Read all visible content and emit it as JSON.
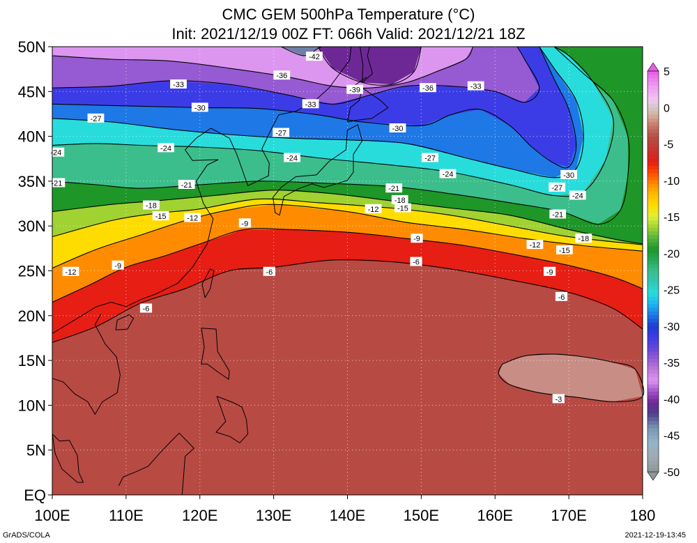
{
  "title_line1": "CMC GEM 500hPa Temperature (°C)",
  "title_line2": "Init: 2021/12/19 00Z  FT: 066h  Valid: 2021/12/21 18Z",
  "footer_left": "GrADS/COLA",
  "footer_right": "2021-12-19-13:45",
  "map": {
    "lon_range": [
      100,
      180
    ],
    "lat_range": [
      0,
      50
    ],
    "lon_tick_labels": [
      "100E",
      "110E",
      "120E",
      "130E",
      "140E",
      "150E",
      "160E",
      "170E",
      "180"
    ],
    "lat_tick_labels": [
      "EQ",
      "5N",
      "10N",
      "15N",
      "20N",
      "25N",
      "30N",
      "35N",
      "40N",
      "45N",
      "50N"
    ],
    "grid": true
  },
  "colorbar": {
    "tick_labels": [
      "5",
      "0",
      "-5",
      "-10",
      "-15",
      "-20",
      "-25",
      "-30",
      "-35",
      "-40",
      "-45",
      "-50"
    ],
    "range": [
      -50,
      5
    ],
    "extend_arrows": true
  },
  "contours": [
    {
      "value": -3,
      "label": "-3",
      "points": [
        [
          161,
          14.6
        ],
        [
          164,
          15.5
        ],
        [
          168,
          15.7
        ],
        [
          172,
          15.4
        ],
        [
          176,
          14.8
        ],
        [
          179,
          14.0
        ],
        [
          180,
          11.0
        ],
        [
          176,
          10.4
        ],
        [
          171,
          10.9
        ],
        [
          166,
          11.4
        ],
        [
          162,
          12.3
        ],
        [
          160.5,
          13.5
        ],
        [
          161,
          14.6
        ]
      ]
    },
    {
      "value": -6,
      "label": "-6",
      "points": [
        [
          100,
          17.0
        ],
        [
          106,
          18.8
        ],
        [
          112,
          21.4
        ],
        [
          118,
          23.0
        ],
        [
          124,
          25.0
        ],
        [
          130,
          25.4
        ],
        [
          138,
          26.2
        ],
        [
          146,
          26.0
        ],
        [
          154,
          25.2
        ],
        [
          162,
          24.0
        ],
        [
          170,
          22.6
        ],
        [
          176,
          20.8
        ],
        [
          180,
          18.5
        ]
      ]
    },
    {
      "value": -9,
      "label": "-9",
      "points": [
        [
          100,
          21.5
        ],
        [
          105,
          23.4
        ],
        [
          110,
          25.4
        ],
        [
          115,
          26.6
        ],
        [
          120,
          28.0
        ],
        [
          126,
          29.6
        ],
        [
          132,
          29.6
        ],
        [
          140,
          29.3
        ],
        [
          148,
          28.6
        ],
        [
          156,
          27.8
        ],
        [
          164,
          26.6
        ],
        [
          170,
          25.6
        ],
        [
          176,
          24.3
        ],
        [
          180,
          23.0
        ]
      ]
    },
    {
      "value": -12,
      "label": "-12",
      "points": [
        [
          100,
          25.3
        ],
        [
          106,
          27.4
        ],
        [
          112,
          29.0
        ],
        [
          118,
          30.6
        ],
        [
          124,
          31.8
        ],
        [
          130,
          32.4
        ],
        [
          140,
          31.6
        ],
        [
          148,
          30.4
        ],
        [
          156,
          29.6
        ],
        [
          164,
          28.6
        ],
        [
          172,
          27.8
        ],
        [
          180,
          27.2
        ]
      ]
    },
    {
      "value": -15,
      "label": "-15",
      "points": [
        [
          100,
          28.8
        ],
        [
          108,
          30.6
        ],
        [
          114,
          31.4
        ],
        [
          120,
          31.9
        ],
        [
          128,
          33.0
        ],
        [
          136,
          32.6
        ],
        [
          146,
          32.0
        ],
        [
          154,
          31.2
        ],
        [
          162,
          30.0
        ],
        [
          170,
          28.8
        ],
        [
          180,
          27.9
        ]
      ]
    },
    {
      "value": -18,
      "label": "-18",
      "points": [
        [
          100,
          31.6
        ],
        [
          108,
          32.4
        ],
        [
          114,
          32.8
        ],
        [
          122,
          33.4
        ],
        [
          130,
          34.0
        ],
        [
          138,
          33.6
        ],
        [
          146,
          32.8
        ],
        [
          154,
          32.0
        ],
        [
          162,
          31.2
        ],
        [
          170,
          29.6
        ],
        [
          177,
          28.4
        ],
        [
          180,
          28.0
        ]
      ]
    },
    {
      "value": -21,
      "label": "-21",
      "points": [
        [
          100,
          35.0
        ],
        [
          106,
          34.6
        ],
        [
          112,
          34.2
        ],
        [
          120,
          34.6
        ],
        [
          128,
          35.0
        ],
        [
          136,
          34.8
        ],
        [
          146,
          34.4
        ],
        [
          154,
          33.6
        ],
        [
          162,
          32.6
        ],
        [
          169,
          31.6
        ],
        [
          174,
          30.2
        ],
        [
          177,
          31.8
        ],
        [
          178,
          35.6
        ],
        [
          178,
          40.0
        ],
        [
          176,
          44.0
        ],
        [
          172,
          47.0
        ],
        [
          168,
          50.0
        ]
      ]
    },
    {
      "value": -24,
      "label": "-24",
      "points": [
        [
          100,
          39.0
        ],
        [
          106,
          39.2
        ],
        [
          112,
          39.0
        ],
        [
          120,
          38.8
        ],
        [
          128,
          38.4
        ],
        [
          136,
          37.6
        ],
        [
          146,
          36.8
        ],
        [
          154,
          36.0
        ],
        [
          162,
          34.6
        ],
        [
          168,
          33.4
        ],
        [
          172,
          33.8
        ],
        [
          175,
          37.4
        ],
        [
          176,
          42.0
        ],
        [
          173,
          46.4
        ],
        [
          170,
          49.0
        ],
        [
          168,
          50.0
        ]
      ]
    },
    {
      "value": -27,
      "label": "-27",
      "points": [
        [
          100,
          42.0
        ],
        [
          108,
          41.6
        ],
        [
          116,
          40.8
        ],
        [
          124,
          40.2
        ],
        [
          132,
          39.8
        ],
        [
          140,
          39.6
        ],
        [
          148,
          39.2
        ],
        [
          156,
          37.6
        ],
        [
          162,
          36.4
        ],
        [
          168,
          35.4
        ],
        [
          171,
          36.4
        ],
        [
          172,
          40.0
        ],
        [
          171,
          44.0
        ],
        [
          168,
          47.6
        ],
        [
          166,
          50.0
        ]
      ]
    },
    {
      "value": -30,
      "label": "-30",
      "points": [
        [
          100,
          43.6
        ],
        [
          110,
          43.4
        ],
        [
          120,
          43.2
        ],
        [
          128,
          43.1
        ],
        [
          136,
          42.4
        ],
        [
          142,
          41.6
        ],
        [
          150,
          41.2
        ],
        [
          154,
          42.4
        ],
        [
          158,
          43.0
        ],
        [
          162,
          41.2
        ],
        [
          165,
          38.8
        ],
        [
          168,
          37.0
        ],
        [
          170,
          36.6
        ],
        [
          171,
          39.0
        ],
        [
          170,
          43.0
        ],
        [
          168,
          46.4
        ],
        [
          166,
          50.0
        ]
      ]
    },
    {
      "value": -33,
      "label": "-33",
      "points": [
        [
          100,
          45.4
        ],
        [
          108,
          45.6
        ],
        [
          116,
          46.2
        ],
        [
          124,
          45.8
        ],
        [
          132,
          44.6
        ],
        [
          138,
          43.6
        ],
        [
          143,
          44.6
        ],
        [
          148,
          45.6
        ],
        [
          154,
          45.6
        ],
        [
          160,
          45.0
        ],
        [
          164,
          43.8
        ],
        [
          166,
          45.4
        ],
        [
          164,
          48.6
        ],
        [
          163,
          50.0
        ]
      ]
    },
    {
      "value": -36,
      "label": "-36",
      "points": [
        [
          100,
          49.0
        ],
        [
          108,
          48.6
        ],
        [
          116,
          48.4
        ],
        [
          124,
          47.6
        ],
        [
          132,
          46.6
        ],
        [
          138,
          45.6
        ],
        [
          143,
          45.4
        ],
        [
          148,
          46.0
        ],
        [
          152,
          47.2
        ],
        [
          156,
          48.6
        ],
        [
          157,
          50.0
        ]
      ]
    },
    {
      "value": -39,
      "label": "-39",
      "points": [
        [
          136,
          50.0
        ],
        [
          138,
          47.6
        ],
        [
          142,
          46.0
        ],
        [
          146,
          45.8
        ],
        [
          149,
          47.2
        ],
        [
          150,
          50.0
        ]
      ]
    },
    {
      "value": -42,
      "label": "-42",
      "points": [
        [
          131,
          50.0
        ],
        [
          134,
          49.0
        ],
        [
          136,
          49.8
        ],
        [
          136.5,
          50.0
        ]
      ]
    }
  ],
  "contour_labels": [
    {
      "text": "-42",
      "lon": 135.5,
      "lat": 48.9
    },
    {
      "text": "-36",
      "lon": 131.1,
      "lat": 46.8
    },
    {
      "text": "-33",
      "lon": 117.1,
      "lat": 45.8
    },
    {
      "text": "-39",
      "lon": 141.0,
      "lat": 45.2
    },
    {
      "text": "-36",
      "lon": 150.9,
      "lat": 45.4
    },
    {
      "text": "-33",
      "lon": 157.4,
      "lat": 45.6
    },
    {
      "text": "-30",
      "lon": 120.0,
      "lat": 43.2
    },
    {
      "text": "-33",
      "lon": 135.0,
      "lat": 43.6
    },
    {
      "text": "-27",
      "lon": 105.9,
      "lat": 42.0
    },
    {
      "text": "-30",
      "lon": 146.8,
      "lat": 40.9
    },
    {
      "text": "-27",
      "lon": 131.0,
      "lat": 40.4
    },
    {
      "text": "-24",
      "lon": 115.4,
      "lat": 38.7
    },
    {
      "text": "-24",
      "lon": 100.5,
      "lat": 38.2
    },
    {
      "text": "-24",
      "lon": 132.5,
      "lat": 37.6
    },
    {
      "text": "-27",
      "lon": 151.2,
      "lat": 37.6
    },
    {
      "text": "-24",
      "lon": 153.6,
      "lat": 35.8
    },
    {
      "text": "-30",
      "lon": 170.0,
      "lat": 35.7
    },
    {
      "text": "-27",
      "lon": 168.4,
      "lat": 34.3
    },
    {
      "text": "-21",
      "lon": 100.6,
      "lat": 34.8
    },
    {
      "text": "-21",
      "lon": 118.2,
      "lat": 34.6
    },
    {
      "text": "-21",
      "lon": 146.3,
      "lat": 34.2
    },
    {
      "text": "-24",
      "lon": 171.2,
      "lat": 33.4
    },
    {
      "text": "-18",
      "lon": 147.1,
      "lat": 32.9
    },
    {
      "text": "-18",
      "lon": 113.4,
      "lat": 32.3
    },
    {
      "text": "-15",
      "lon": 147.5,
      "lat": 32.0
    },
    {
      "text": "-12",
      "lon": 143.5,
      "lat": 31.9
    },
    {
      "text": "-21",
      "lon": 168.5,
      "lat": 31.3
    },
    {
      "text": "-15",
      "lon": 114.7,
      "lat": 31.1
    },
    {
      "text": "-12",
      "lon": 119.0,
      "lat": 30.9
    },
    {
      "text": "-9",
      "lon": 126.1,
      "lat": 30.3
    },
    {
      "text": "-18",
      "lon": 172.0,
      "lat": 28.6
    },
    {
      "text": "-9",
      "lon": 149.4,
      "lat": 28.6
    },
    {
      "text": "-12",
      "lon": 165.4,
      "lat": 27.9
    },
    {
      "text": "-15",
      "lon": 169.4,
      "lat": 27.3
    },
    {
      "text": "-6",
      "lon": 149.3,
      "lat": 26.0
    },
    {
      "text": "-9",
      "lon": 108.9,
      "lat": 25.6
    },
    {
      "text": "-12",
      "lon": 102.5,
      "lat": 24.9
    },
    {
      "text": "-9",
      "lon": 167.4,
      "lat": 24.9
    },
    {
      "text": "-6",
      "lon": 129.4,
      "lat": 24.9
    },
    {
      "text": "-6",
      "lon": 169.0,
      "lat": 22.1
    },
    {
      "text": "-6",
      "lon": 112.7,
      "lat": 20.8
    },
    {
      "text": "-3",
      "lon": 168.6,
      "lat": 10.7
    }
  ]
}
